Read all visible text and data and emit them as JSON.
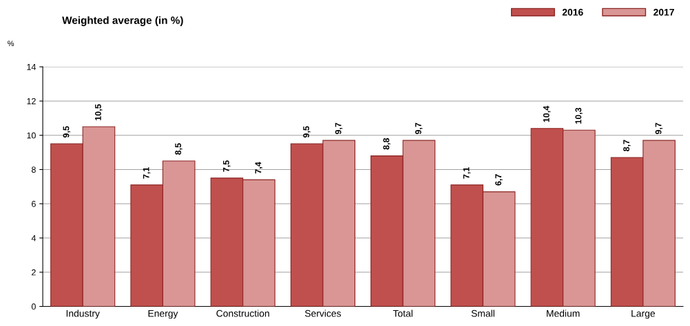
{
  "chart_data": {
    "type": "bar",
    "title": "Weighted average (in %)",
    "ylabel": "%",
    "categories": [
      "Industry",
      "Energy",
      "Construction",
      "Services",
      "Total",
      "Small",
      "Medium",
      "Large"
    ],
    "series": [
      {
        "name": "2016",
        "color": "#c0504d",
        "values": [
          9.5,
          7.1,
          7.5,
          9.5,
          8.8,
          7.1,
          10.4,
          8.7
        ],
        "value_labels": [
          "9,5",
          "7,1",
          "7,5",
          "9,5",
          "8,8",
          "7,1",
          "10,4",
          "8,7"
        ]
      },
      {
        "name": "2017",
        "color": "#d99694",
        "values": [
          10.5,
          8.5,
          7.4,
          9.7,
          9.7,
          6.7,
          10.3,
          9.7
        ],
        "value_labels": [
          "10,5",
          "8,5",
          "7,4",
          "9,7",
          "9,7",
          "6,7",
          "10,3",
          "9,7"
        ]
      }
    ],
    "ylim": [
      0,
      14
    ],
    "yticks": [
      0,
      2,
      4,
      6,
      8,
      10,
      12,
      14
    ],
    "grid": "y",
    "legend": "top right"
  }
}
